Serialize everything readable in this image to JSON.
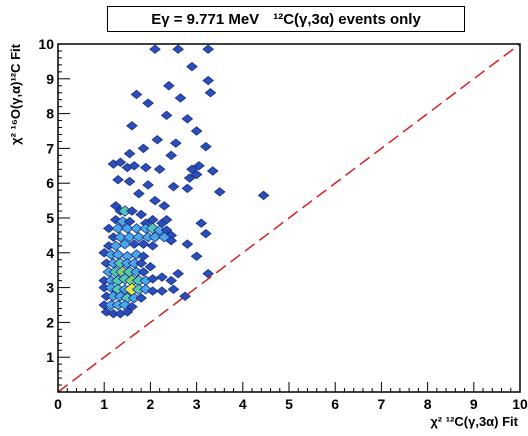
{
  "chart_data": {
    "type": "heatmap",
    "title": "Eγ = 9.771 MeV   ¹²C(γ,3α) events only",
    "title_parts": {
      "main": "Eγ = 9.771 MeV",
      "extra": "¹²C(γ,3α) events only"
    },
    "xlabel": "χ² ¹²C(γ,3α) Fit",
    "ylabel": "χ² ¹⁶O(γ,α)¹²C Fit",
    "xlim": [
      0,
      10
    ],
    "ylim": [
      0,
      10
    ],
    "x_ticks": [
      0,
      1,
      2,
      3,
      4,
      5,
      6,
      7,
      8,
      9,
      10
    ],
    "y_ticks": [
      1,
      2,
      3,
      4,
      5,
      6,
      7,
      8,
      9,
      10
    ],
    "diagonal_line": {
      "from": [
        0,
        0
      ],
      "to": [
        10,
        10
      ],
      "style": "dashed",
      "color": "#d42020"
    },
    "colors": {
      "level1": "#2a4fb8",
      "level2": "#49a8e6",
      "level3": "#55c8b4",
      "level4": "#7fd36a",
      "level5": "#e8e840"
    },
    "cells": [
      [
        2.1,
        9.85,
        1
      ],
      [
        2.6,
        9.85,
        1
      ],
      [
        3.25,
        9.85,
        1
      ],
      [
        2.9,
        9.35,
        1
      ],
      [
        3.25,
        8.95,
        1
      ],
      [
        2.4,
        8.8,
        1
      ],
      [
        1.7,
        8.55,
        1
      ],
      [
        2.65,
        8.45,
        1
      ],
      [
        3.3,
        8.6,
        1
      ],
      [
        1.95,
        8.3,
        1
      ],
      [
        2.35,
        7.95,
        1
      ],
      [
        2.8,
        7.85,
        1
      ],
      [
        1.6,
        7.65,
        1
      ],
      [
        3.0,
        7.5,
        1
      ],
      [
        2.15,
        7.25,
        1
      ],
      [
        2.55,
        7.15,
        1
      ],
      [
        1.85,
        7.0,
        1
      ],
      [
        3.2,
        7.05,
        1
      ],
      [
        1.55,
        6.85,
        1
      ],
      [
        2.45,
        6.8,
        1
      ],
      [
        1.2,
        6.55,
        1
      ],
      [
        1.35,
        6.6,
        1
      ],
      [
        1.5,
        6.45,
        1
      ],
      [
        1.65,
        6.5,
        1
      ],
      [
        1.9,
        6.45,
        1
      ],
      [
        2.2,
        6.4,
        1
      ],
      [
        2.9,
        6.4,
        1
      ],
      [
        3.05,
        6.5,
        1
      ],
      [
        3.35,
        6.35,
        1
      ],
      [
        2.85,
        6.15,
        1
      ],
      [
        3.0,
        6.25,
        1
      ],
      [
        1.3,
        6.1,
        1
      ],
      [
        1.55,
        6.05,
        1
      ],
      [
        1.95,
        5.95,
        1
      ],
      [
        2.5,
        5.9,
        1
      ],
      [
        2.8,
        5.85,
        1
      ],
      [
        3.5,
        5.75,
        1
      ],
      [
        4.45,
        5.65,
        1
      ],
      [
        1.75,
        5.7,
        1
      ],
      [
        2.1,
        5.5,
        1
      ],
      [
        2.3,
        5.35,
        1
      ],
      [
        1.25,
        5.35,
        1
      ],
      [
        1.35,
        5.2,
        1
      ],
      [
        1.45,
        5.2,
        3
      ],
      [
        1.6,
        5.2,
        1
      ],
      [
        1.8,
        5.1,
        1
      ],
      [
        1.25,
        4.95,
        1
      ],
      [
        1.4,
        4.9,
        2
      ],
      [
        1.55,
        4.9,
        1
      ],
      [
        1.9,
        4.85,
        1
      ],
      [
        2.05,
        4.95,
        1
      ],
      [
        2.25,
        4.85,
        1
      ],
      [
        3.1,
        4.85,
        1
      ],
      [
        2.35,
        4.95,
        1
      ],
      [
        1.1,
        4.7,
        1
      ],
      [
        1.3,
        4.7,
        2
      ],
      [
        1.5,
        4.7,
        2
      ],
      [
        1.7,
        4.7,
        2
      ],
      [
        1.9,
        4.7,
        2
      ],
      [
        2.05,
        4.7,
        3
      ],
      [
        2.2,
        4.65,
        2
      ],
      [
        2.35,
        4.65,
        1
      ],
      [
        2.45,
        4.5,
        1
      ],
      [
        3.2,
        4.55,
        1
      ],
      [
        1.2,
        4.45,
        1
      ],
      [
        1.35,
        4.45,
        2
      ],
      [
        1.55,
        4.45,
        2
      ],
      [
        1.75,
        4.45,
        2
      ],
      [
        1.95,
        4.45,
        2
      ],
      [
        2.1,
        4.45,
        2
      ],
      [
        2.3,
        4.45,
        2
      ],
      [
        2.45,
        4.35,
        1
      ],
      [
        1.1,
        4.2,
        1
      ],
      [
        1.25,
        4.2,
        2
      ],
      [
        1.45,
        4.25,
        2
      ],
      [
        1.65,
        4.25,
        1
      ],
      [
        1.85,
        4.25,
        1
      ],
      [
        2.05,
        4.2,
        1
      ],
      [
        2.8,
        4.25,
        1
      ],
      [
        1.0,
        4.0,
        1
      ],
      [
        1.15,
        3.95,
        2
      ],
      [
        1.3,
        3.95,
        2
      ],
      [
        1.5,
        3.9,
        2
      ],
      [
        1.7,
        3.95,
        2
      ],
      [
        1.85,
        3.9,
        1
      ],
      [
        3.0,
        3.9,
        1
      ],
      [
        1.05,
        3.7,
        1
      ],
      [
        1.2,
        3.7,
        2
      ],
      [
        1.35,
        3.7,
        3
      ],
      [
        1.5,
        3.7,
        2
      ],
      [
        1.65,
        3.7,
        2
      ],
      [
        1.8,
        3.7,
        1
      ],
      [
        2.0,
        3.6,
        1
      ],
      [
        1.1,
        3.45,
        2
      ],
      [
        1.25,
        3.45,
        3
      ],
      [
        1.4,
        3.45,
        4
      ],
      [
        1.55,
        3.45,
        3
      ],
      [
        1.7,
        3.45,
        2
      ],
      [
        1.85,
        3.45,
        1
      ],
      [
        2.6,
        3.4,
        1
      ],
      [
        3.25,
        3.4,
        1
      ],
      [
        1.0,
        3.2,
        1
      ],
      [
        1.15,
        3.2,
        2
      ],
      [
        1.3,
        3.2,
        3
      ],
      [
        1.45,
        3.25,
        3
      ],
      [
        1.6,
        3.2,
        4
      ],
      [
        1.75,
        3.2,
        3
      ],
      [
        1.9,
        3.2,
        2
      ],
      [
        2.05,
        3.25,
        1
      ],
      [
        2.25,
        3.3,
        1
      ],
      [
        2.45,
        3.2,
        1
      ],
      [
        1.0,
        3.0,
        1
      ],
      [
        1.15,
        3.0,
        2
      ],
      [
        1.3,
        2.95,
        3
      ],
      [
        1.45,
        2.95,
        2
      ],
      [
        1.6,
        2.95,
        5
      ],
      [
        1.75,
        2.95,
        3
      ],
      [
        1.9,
        2.95,
        2
      ],
      [
        2.05,
        2.9,
        1
      ],
      [
        2.25,
        2.9,
        1
      ],
      [
        2.5,
        2.95,
        1
      ],
      [
        1.05,
        2.75,
        1
      ],
      [
        1.2,
        2.75,
        2
      ],
      [
        1.35,
        2.75,
        2
      ],
      [
        1.5,
        2.7,
        3
      ],
      [
        1.65,
        2.7,
        2
      ],
      [
        1.8,
        2.7,
        1
      ],
      [
        2.75,
        2.75,
        1
      ],
      [
        1.0,
        2.5,
        1
      ],
      [
        1.15,
        2.5,
        2
      ],
      [
        1.3,
        2.5,
        2
      ],
      [
        1.45,
        2.5,
        2
      ],
      [
        1.6,
        2.45,
        1
      ],
      [
        1.05,
        2.3,
        1
      ],
      [
        1.2,
        2.25,
        1
      ],
      [
        1.35,
        2.25,
        1
      ],
      [
        1.5,
        2.3,
        1
      ]
    ]
  }
}
